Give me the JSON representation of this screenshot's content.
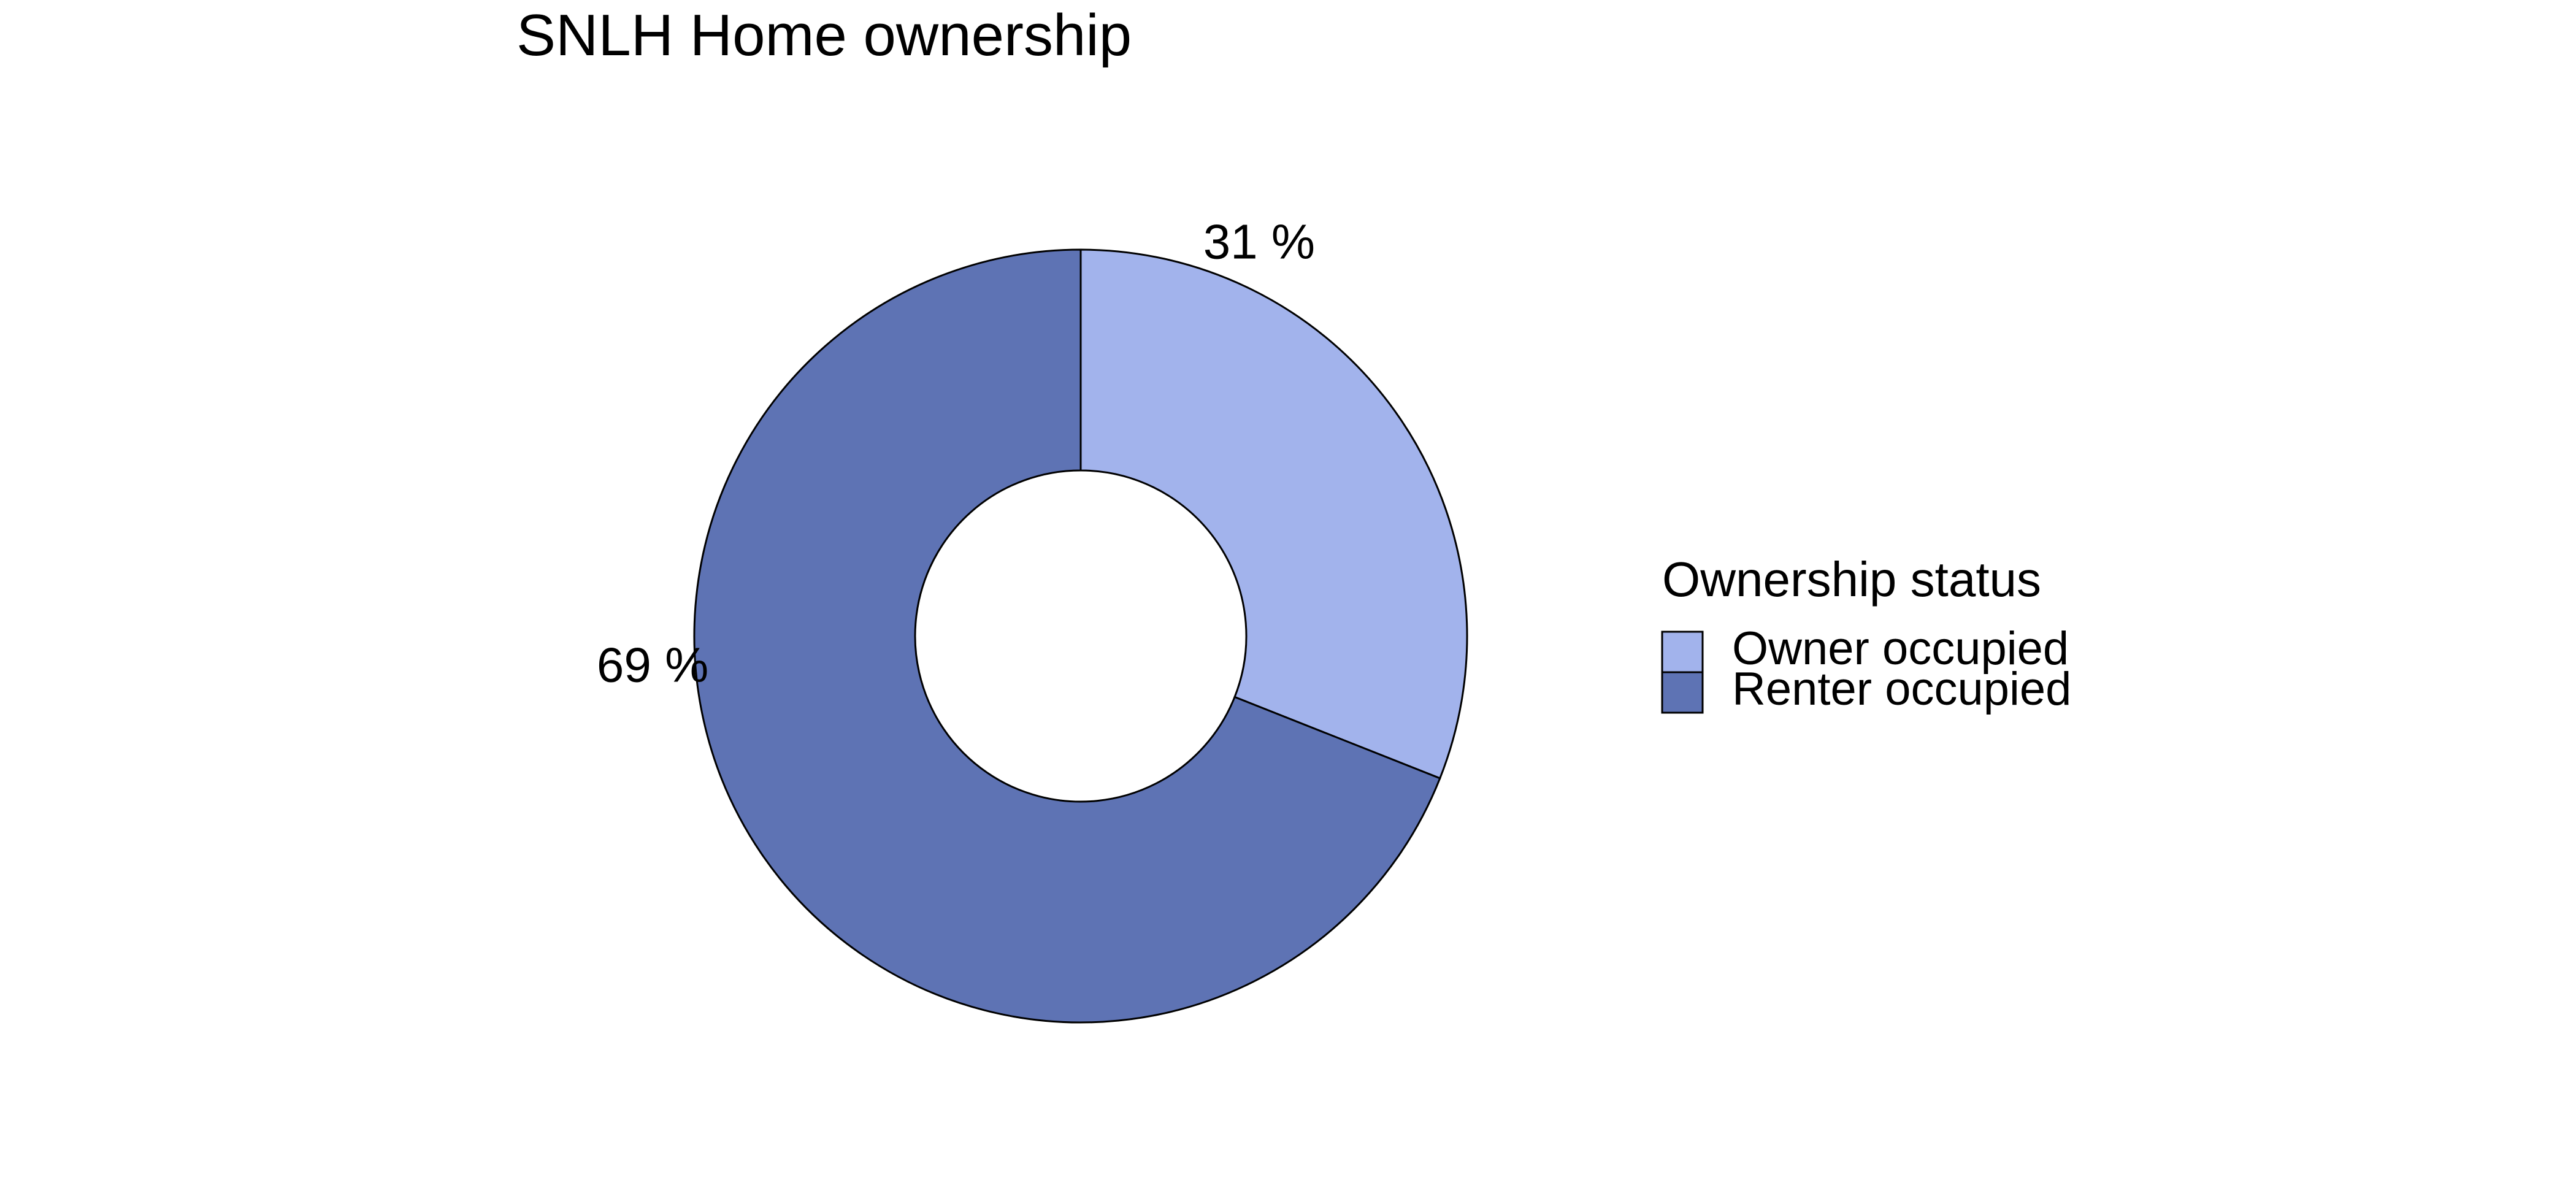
{
  "chart_data": {
    "type": "pie",
    "style": "donut",
    "title": "SNLH Home ownership",
    "legend_title": "Ownership status",
    "legend_position": "right",
    "slices": [
      {
        "name": "Owner occupied",
        "value": 31,
        "label": "31 %",
        "color": "#a2b3ec"
      },
      {
        "name": "Renter occupied",
        "value": 69,
        "label": "69 %",
        "color": "#5e73b4"
      }
    ]
  }
}
